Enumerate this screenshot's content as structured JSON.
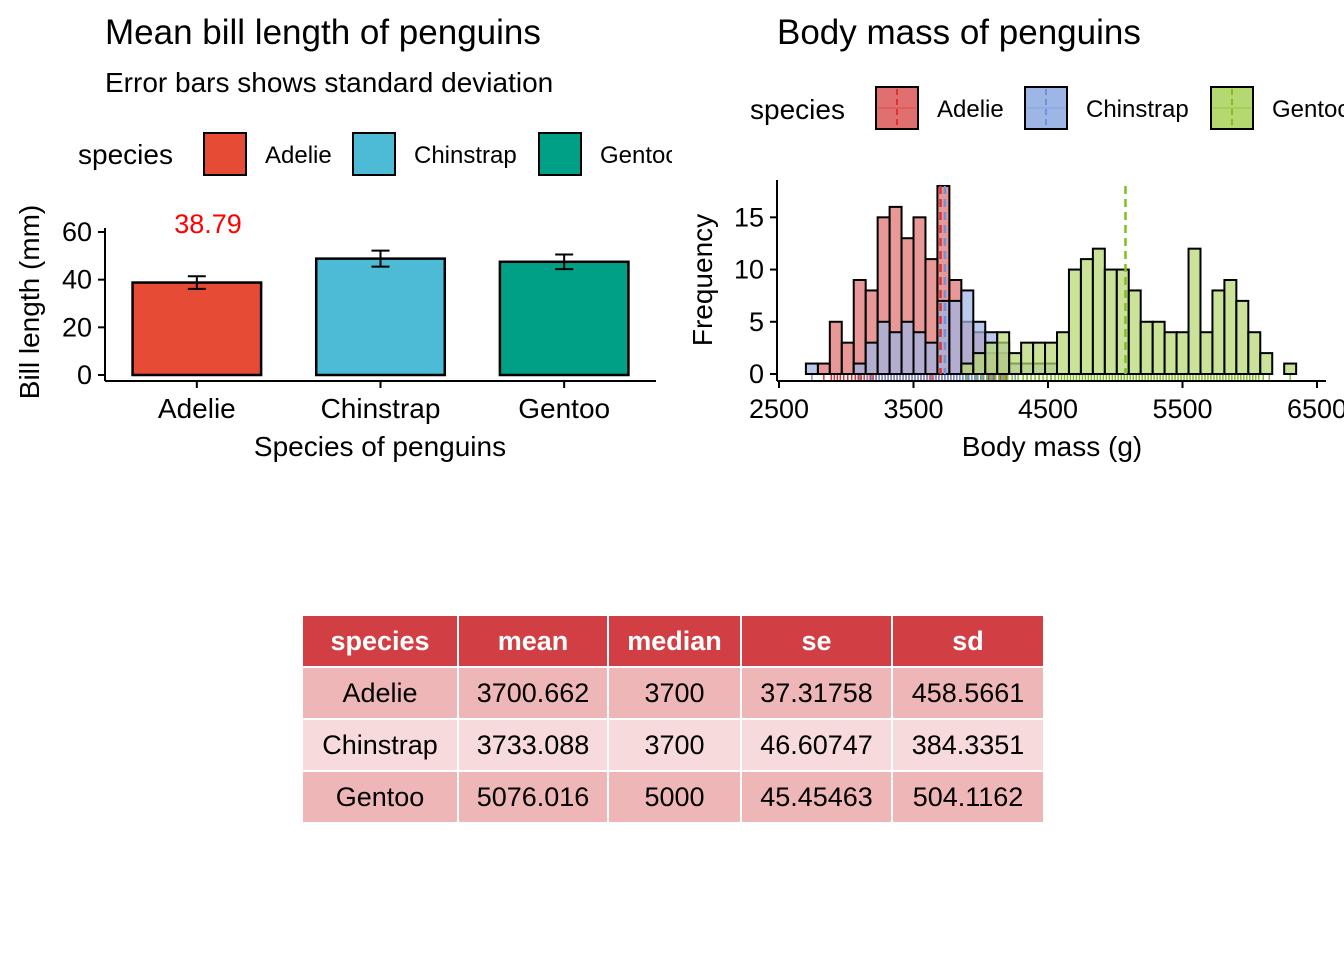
{
  "chart_data": [
    {
      "type": "bar",
      "title": "Mean bill length of penguins",
      "subtitle": "Error bars shows standard deviation",
      "xlabel": "Species of penguins",
      "ylabel": "Bill length (mm)",
      "legend_title": "species",
      "legend_position": "top",
      "categories": [
        "Adelie",
        "Chinstrap",
        "Gentoo"
      ],
      "values": [
        38.79,
        48.83,
        47.5
      ],
      "sd": [
        2.66,
        3.34,
        3.08
      ],
      "colors": [
        "#e64b35",
        "#4dbbd5",
        "#00a087"
      ],
      "data_label": "38.79",
      "data_label_color": "#ff0000",
      "ylim": [
        0,
        60
      ],
      "yticks": [
        "0",
        "20",
        "40",
        "60"
      ]
    },
    {
      "type": "histogram",
      "title": "Body mass of penguins",
      "xlabel": "Body mass (g)",
      "ylabel": "Frequency",
      "legend_title": "species",
      "legend_position": "top",
      "xlim": [
        2500,
        6500
      ],
      "ylim": [
        0,
        18
      ],
      "xticks": [
        "2500",
        "3500",
        "4500",
        "5500",
        "6500"
      ],
      "yticks": [
        "0",
        "5",
        "10",
        "15"
      ],
      "bin_start": 2700,
      "bin_width": 88.9,
      "series": [
        {
          "name": "Adelie",
          "color": "#e0312e",
          "fill": "#e07070",
          "mean": 3700.662,
          "counts": [
            0,
            1,
            5,
            3,
            9,
            8,
            15,
            16,
            13,
            15,
            11,
            18,
            9,
            5,
            4,
            2,
            2,
            0,
            0,
            0,
            0,
            0,
            0,
            0,
            0,
            0,
            0,
            0,
            0,
            0,
            0,
            0,
            0,
            0,
            0,
            0,
            0,
            0,
            0,
            0,
            0
          ]
        },
        {
          "name": "Chinstrap",
          "color": "#6f92d8",
          "fill": "#9eb6e6",
          "mean": 3733.088,
          "counts": [
            1,
            0,
            0,
            0,
            1,
            3,
            5,
            4,
            5,
            4,
            3,
            7,
            7,
            8,
            5,
            4,
            3,
            1,
            1,
            1,
            1,
            0,
            0,
            0,
            0,
            0,
            0,
            0,
            0,
            0,
            0,
            0,
            0,
            0,
            0,
            0,
            0,
            0,
            0,
            0,
            0
          ]
        },
        {
          "name": "Gentoo",
          "color": "#7fbf1e",
          "fill": "#b5d870",
          "mean": 5076.016,
          "counts": [
            0,
            0,
            0,
            0,
            0,
            0,
            0,
            0,
            0,
            0,
            0,
            0,
            0,
            1,
            2,
            3,
            4,
            2,
            3,
            3,
            3,
            4,
            10,
            11,
            12,
            10,
            10,
            8,
            5,
            5,
            4,
            4,
            12,
            4,
            8,
            9,
            7,
            4,
            2,
            0,
            1
          ]
        }
      ]
    }
  ],
  "table": {
    "headers": [
      "species",
      "mean",
      "median",
      "se",
      "sd"
    ],
    "rows": [
      [
        "Adelie",
        "3700.662",
        "3700",
        "37.31758",
        "458.5661"
      ],
      [
        "Chinstrap",
        "3733.088",
        "3700",
        "46.60747",
        "384.3351"
      ],
      [
        "Gentoo",
        "5076.016",
        "5000",
        "45.45463",
        "504.1162"
      ]
    ]
  }
}
